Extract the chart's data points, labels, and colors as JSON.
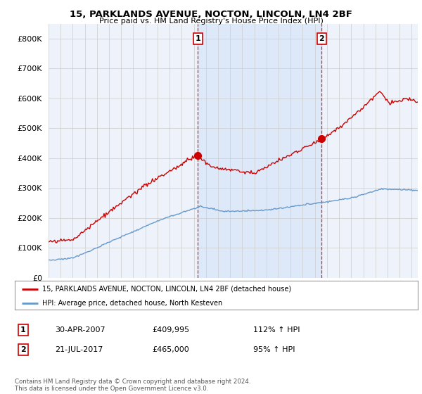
{
  "title": "15, PARKLANDS AVENUE, NOCTON, LINCOLN, LN4 2BF",
  "subtitle": "Price paid vs. HM Land Registry's House Price Index (HPI)",
  "legend_line1": "15, PARKLANDS AVENUE, NOCTON, LINCOLN, LN4 2BF (detached house)",
  "legend_line2": "HPI: Average price, detached house, North Kesteven",
  "footnote": "Contains HM Land Registry data © Crown copyright and database right 2024.\nThis data is licensed under the Open Government Licence v3.0.",
  "sale_color": "#cc0000",
  "hpi_color": "#6699cc",
  "highlight_color": "#dde8f8",
  "background_color": "#eef2fa",
  "ylim": [
    0,
    850000
  ],
  "yticks": [
    0,
    100000,
    200000,
    300000,
    400000,
    500000,
    600000,
    700000,
    800000
  ],
  "sale1_x": 2007.33,
  "sale1_y": 409995,
  "sale2_x": 2017.55,
  "sale2_y": 465000,
  "xmin": 1995.0,
  "xmax": 2025.5
}
